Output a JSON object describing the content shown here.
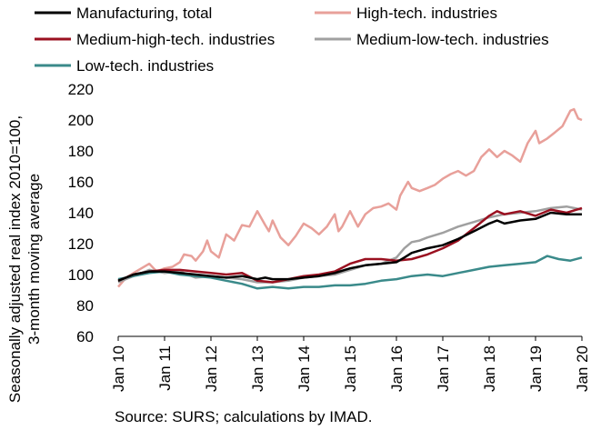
{
  "chart_data": {
    "type": "line",
    "title": "",
    "ylabel_lines": [
      "Seasonally adjusted real  index 2010=100,",
      "3-month moving average"
    ],
    "xlabel": "",
    "source": "Source: SURS; calculations by IMAD.",
    "ylim": [
      60,
      220
    ],
    "yticks": [
      60,
      80,
      100,
      120,
      140,
      160,
      180,
      200,
      220
    ],
    "xlim": [
      2010,
      2020
    ],
    "x_ticks": [
      {
        "x": 2010,
        "label": "Jan 10"
      },
      {
        "x": 2011,
        "label": "Jan 11"
      },
      {
        "x": 2012,
        "label": "Jan 12"
      },
      {
        "x": 2013,
        "label": "Jan 13"
      },
      {
        "x": 2014,
        "label": "Jan 14"
      },
      {
        "x": 2015,
        "label": "Jan 15"
      },
      {
        "x": 2016,
        "label": "Jan 16"
      },
      {
        "x": 2017,
        "label": "Jan 17"
      },
      {
        "x": 2018,
        "label": "Jan 18"
      },
      {
        "x": 2019,
        "label": "Jan 19"
      },
      {
        "x": 2020,
        "label": "Jan 20"
      }
    ],
    "legend_position": "top",
    "grid": false,
    "series": [
      {
        "name": "High-tech. industries",
        "color": "#e8a09a",
        "points": [
          [
            2010.0,
            92
          ],
          [
            2010.17,
            98
          ],
          [
            2010.33,
            101
          ],
          [
            2010.5,
            104
          ],
          [
            2010.67,
            107
          ],
          [
            2010.83,
            102
          ],
          [
            2011.0,
            104
          ],
          [
            2011.17,
            105
          ],
          [
            2011.33,
            108
          ],
          [
            2011.42,
            113
          ],
          [
            2011.58,
            112
          ],
          [
            2011.67,
            109
          ],
          [
            2011.83,
            115
          ],
          [
            2011.92,
            122
          ],
          [
            2012.0,
            115
          ],
          [
            2012.17,
            111
          ],
          [
            2012.33,
            126
          ],
          [
            2012.5,
            122
          ],
          [
            2012.67,
            132
          ],
          [
            2012.83,
            131
          ],
          [
            2013.0,
            141
          ],
          [
            2013.17,
            132
          ],
          [
            2013.25,
            128
          ],
          [
            2013.33,
            135
          ],
          [
            2013.5,
            124
          ],
          [
            2013.67,
            119
          ],
          [
            2013.83,
            125
          ],
          [
            2014.0,
            133
          ],
          [
            2014.17,
            130
          ],
          [
            2014.33,
            126
          ],
          [
            2014.5,
            131
          ],
          [
            2014.67,
            139
          ],
          [
            2014.75,
            128
          ],
          [
            2014.83,
            131
          ],
          [
            2015.0,
            141
          ],
          [
            2015.17,
            131
          ],
          [
            2015.33,
            139
          ],
          [
            2015.5,
            143
          ],
          [
            2015.67,
            144
          ],
          [
            2015.83,
            146
          ],
          [
            2016.0,
            142
          ],
          [
            2016.08,
            151
          ],
          [
            2016.25,
            160
          ],
          [
            2016.33,
            156
          ],
          [
            2016.5,
            154
          ],
          [
            2016.67,
            156
          ],
          [
            2016.83,
            158
          ],
          [
            2017.0,
            162
          ],
          [
            2017.17,
            165
          ],
          [
            2017.33,
            167
          ],
          [
            2017.5,
            164
          ],
          [
            2017.67,
            167
          ],
          [
            2017.83,
            176
          ],
          [
            2018.0,
            181
          ],
          [
            2018.17,
            176
          ],
          [
            2018.33,
            180
          ],
          [
            2018.5,
            177
          ],
          [
            2018.67,
            173
          ],
          [
            2018.83,
            185
          ],
          [
            2019.0,
            193
          ],
          [
            2019.08,
            185
          ],
          [
            2019.25,
            188
          ],
          [
            2019.42,
            192
          ],
          [
            2019.58,
            196
          ],
          [
            2019.75,
            206
          ],
          [
            2019.83,
            207
          ],
          [
            2019.92,
            201
          ],
          [
            2020.0,
            200
          ]
        ]
      },
      {
        "name": "Medium-low-tech. industries",
        "color": "#a0a0a0",
        "points": [
          [
            2010.0,
            95
          ],
          [
            2010.33,
            99
          ],
          [
            2010.67,
            103
          ],
          [
            2011.0,
            101
          ],
          [
            2011.33,
            102
          ],
          [
            2011.67,
            98
          ],
          [
            2012.0,
            99
          ],
          [
            2012.33,
            98
          ],
          [
            2012.67,
            97
          ],
          [
            2013.0,
            95
          ],
          [
            2013.33,
            95
          ],
          [
            2013.67,
            96
          ],
          [
            2014.0,
            98
          ],
          [
            2014.33,
            99
          ],
          [
            2014.67,
            100
          ],
          [
            2015.0,
            103
          ],
          [
            2015.33,
            106
          ],
          [
            2015.67,
            107
          ],
          [
            2016.0,
            111
          ],
          [
            2016.17,
            117
          ],
          [
            2016.33,
            121
          ],
          [
            2016.5,
            122
          ],
          [
            2016.67,
            124
          ],
          [
            2017.0,
            127
          ],
          [
            2017.33,
            131
          ],
          [
            2017.67,
            134
          ],
          [
            2018.0,
            137
          ],
          [
            2018.33,
            139
          ],
          [
            2018.67,
            140
          ],
          [
            2019.0,
            141
          ],
          [
            2019.33,
            143
          ],
          [
            2019.67,
            144
          ],
          [
            2020.0,
            142
          ]
        ]
      },
      {
        "name": "Low-tech. industries",
        "color": "#3a8a8a",
        "points": [
          [
            2010.0,
            97
          ],
          [
            2010.33,
            99
          ],
          [
            2010.67,
            101
          ],
          [
            2011.0,
            102
          ],
          [
            2011.33,
            100
          ],
          [
            2011.67,
            99
          ],
          [
            2012.0,
            98
          ],
          [
            2012.33,
            96
          ],
          [
            2012.67,
            94
          ],
          [
            2013.0,
            91
          ],
          [
            2013.33,
            92
          ],
          [
            2013.67,
            91
          ],
          [
            2014.0,
            92
          ],
          [
            2014.33,
            92
          ],
          [
            2014.67,
            93
          ],
          [
            2015.0,
            93
          ],
          [
            2015.33,
            94
          ],
          [
            2015.67,
            96
          ],
          [
            2016.0,
            97
          ],
          [
            2016.33,
            99
          ],
          [
            2016.67,
            100
          ],
          [
            2017.0,
            99
          ],
          [
            2017.33,
            101
          ],
          [
            2017.67,
            103
          ],
          [
            2018.0,
            105
          ],
          [
            2018.33,
            106
          ],
          [
            2018.67,
            107
          ],
          [
            2019.0,
            108
          ],
          [
            2019.25,
            112
          ],
          [
            2019.5,
            110
          ],
          [
            2019.75,
            109
          ],
          [
            2020.0,
            111
          ]
        ]
      },
      {
        "name": "Medium-high-tech. industries",
        "color": "#9a1020",
        "points": [
          [
            2010.0,
            96
          ],
          [
            2010.33,
            100
          ],
          [
            2010.67,
            102
          ],
          [
            2011.0,
            103
          ],
          [
            2011.33,
            103
          ],
          [
            2011.67,
            102
          ],
          [
            2012.0,
            101
          ],
          [
            2012.33,
            100
          ],
          [
            2012.67,
            101
          ],
          [
            2013.0,
            96
          ],
          [
            2013.33,
            95
          ],
          [
            2013.67,
            97
          ],
          [
            2014.0,
            99
          ],
          [
            2014.33,
            100
          ],
          [
            2014.67,
            102
          ],
          [
            2015.0,
            107
          ],
          [
            2015.33,
            110
          ],
          [
            2015.67,
            110
          ],
          [
            2016.0,
            109
          ],
          [
            2016.33,
            110
          ],
          [
            2016.67,
            113
          ],
          [
            2017.0,
            117
          ],
          [
            2017.33,
            122
          ],
          [
            2017.67,
            130
          ],
          [
            2018.0,
            138
          ],
          [
            2018.17,
            141
          ],
          [
            2018.33,
            139
          ],
          [
            2018.67,
            141
          ],
          [
            2019.0,
            138
          ],
          [
            2019.33,
            142
          ],
          [
            2019.67,
            140
          ],
          [
            2020.0,
            143
          ]
        ]
      },
      {
        "name": "Manufacturing, total",
        "color": "#000000",
        "points": [
          [
            2010.0,
            96
          ],
          [
            2010.33,
            100
          ],
          [
            2010.67,
            102
          ],
          [
            2011.0,
            102
          ],
          [
            2011.33,
            101
          ],
          [
            2011.67,
            100
          ],
          [
            2012.0,
            99
          ],
          [
            2012.33,
            98
          ],
          [
            2012.67,
            99
          ],
          [
            2013.0,
            97
          ],
          [
            2013.17,
            98
          ],
          [
            2013.33,
            97
          ],
          [
            2013.67,
            97
          ],
          [
            2014.0,
            98
          ],
          [
            2014.33,
            99
          ],
          [
            2014.67,
            101
          ],
          [
            2015.0,
            104
          ],
          [
            2015.33,
            106
          ],
          [
            2015.67,
            107
          ],
          [
            2016.0,
            108
          ],
          [
            2016.17,
            111
          ],
          [
            2016.33,
            114
          ],
          [
            2016.67,
            117
          ],
          [
            2017.0,
            119
          ],
          [
            2017.33,
            123
          ],
          [
            2017.67,
            128
          ],
          [
            2018.0,
            133
          ],
          [
            2018.17,
            135
          ],
          [
            2018.33,
            133
          ],
          [
            2018.67,
            135
          ],
          [
            2019.0,
            136
          ],
          [
            2019.33,
            140
          ],
          [
            2019.67,
            139
          ],
          [
            2020.0,
            139
          ]
        ]
      }
    ]
  },
  "legend": {
    "rows": [
      [
        "Manufacturing, total",
        "High-tech. industries"
      ],
      [
        "Medium-high-tech. industries",
        "Medium-low-tech. industries"
      ],
      [
        "Low-tech. industries"
      ]
    ]
  }
}
